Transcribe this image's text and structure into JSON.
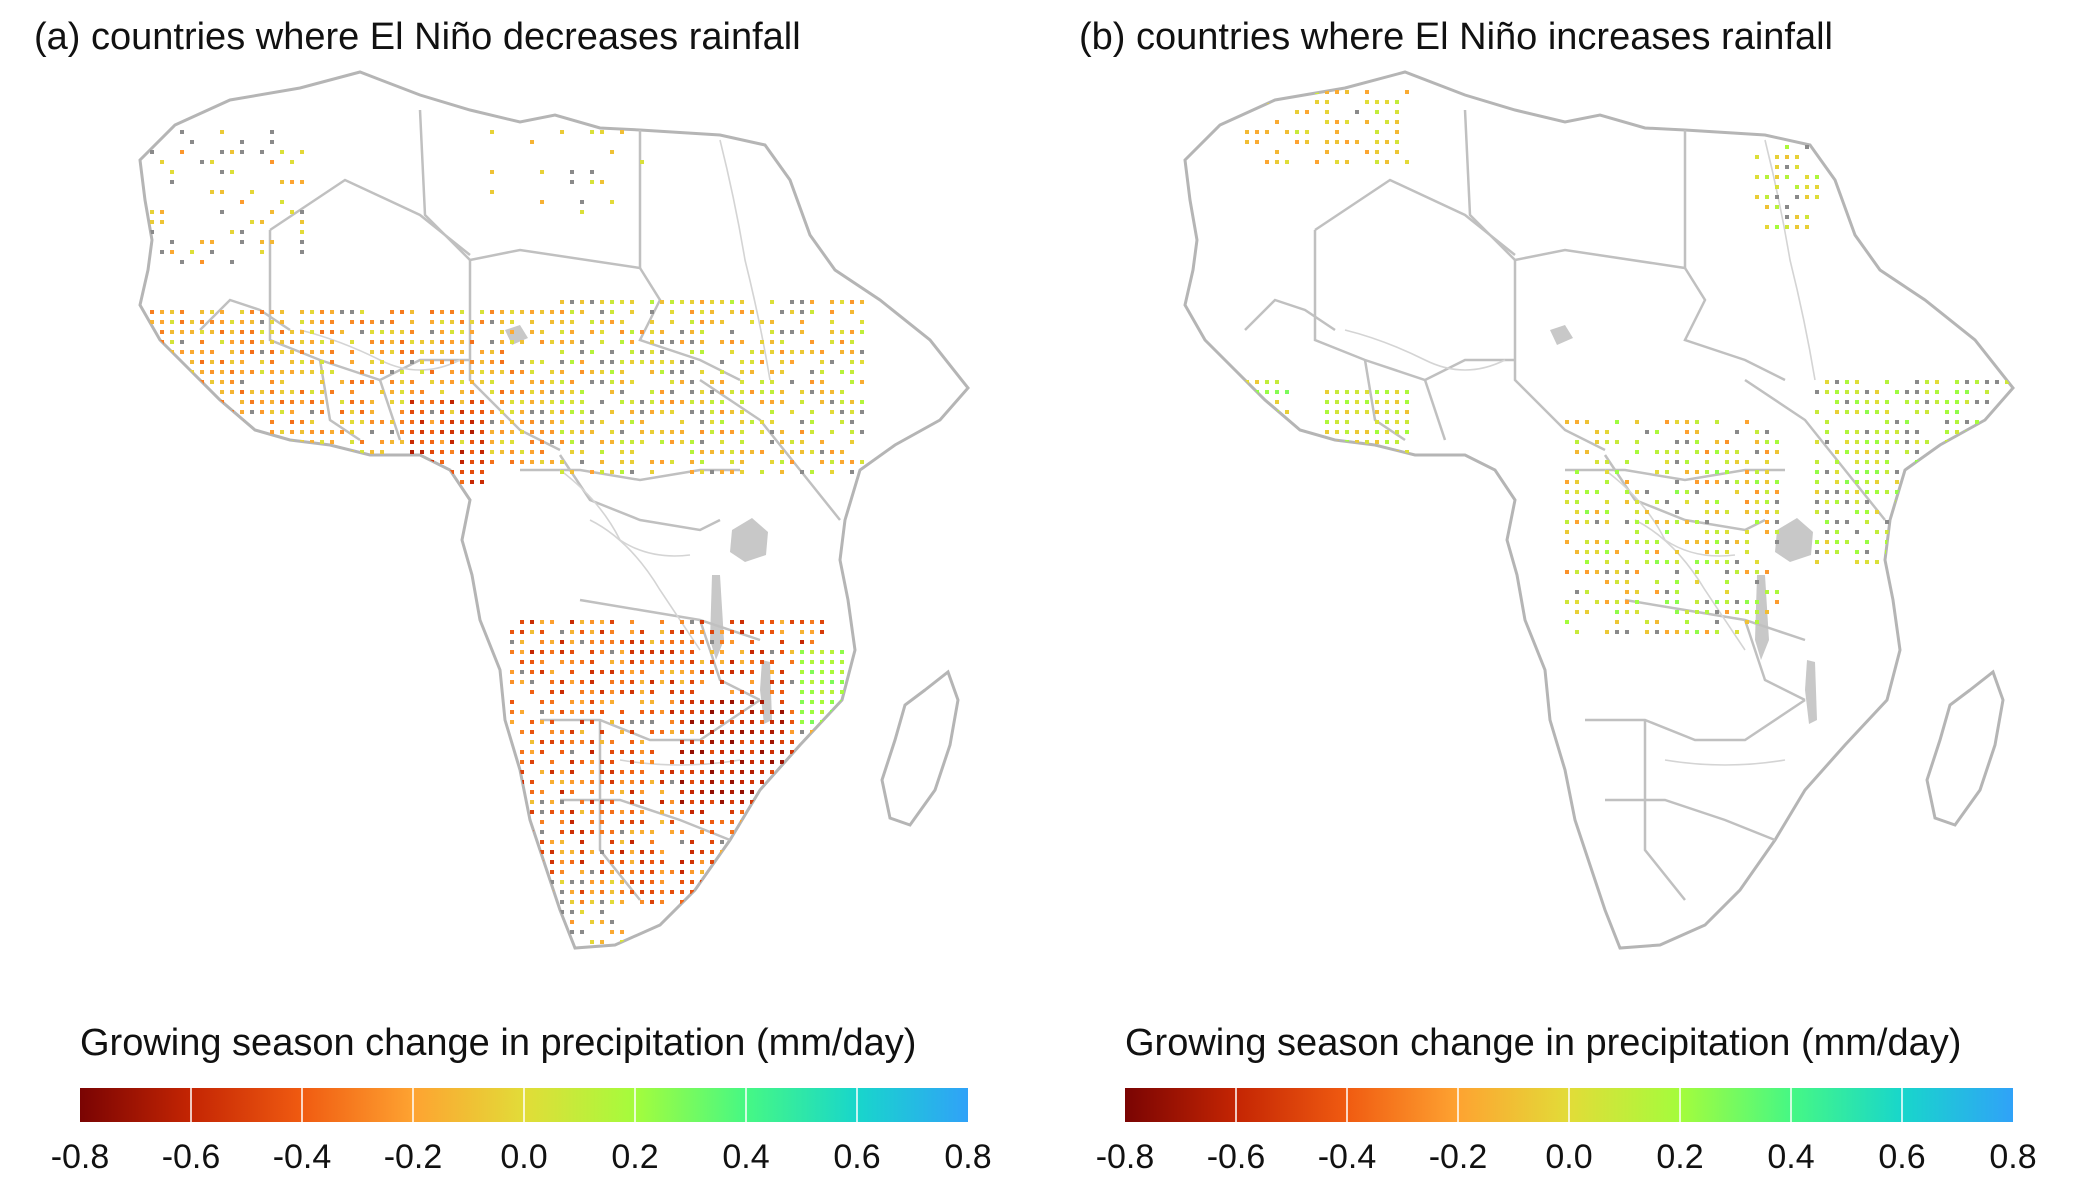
{
  "panels": [
    {
      "id": "a",
      "title": "(a) countries where El Niño decreases rainfall"
    },
    {
      "id": "b",
      "title": "(b) countries where El Niño increases rainfall"
    }
  ],
  "legend": {
    "title": "Growing season change in precipitation (mm/day)",
    "range": [
      -0.8,
      0.8
    ],
    "ticks": [
      "-0.8",
      "-0.6",
      "-0.4",
      "-0.2",
      "0.0",
      "0.2",
      "0.4",
      "0.6",
      "0.8"
    ],
    "colors": [
      "#7a0403",
      "#c42503",
      "#f05b11",
      "#fea331",
      "#e2dc38",
      "#a4fc3c",
      "#46f884",
      "#18d6cb",
      "#30a2f8"
    ]
  },
  "map_colors": {
    "land": "#ffffff",
    "border": "#b5b5b5",
    "lake": "#c8c8c8",
    "no_data_dot": "#8a8a8a"
  }
}
